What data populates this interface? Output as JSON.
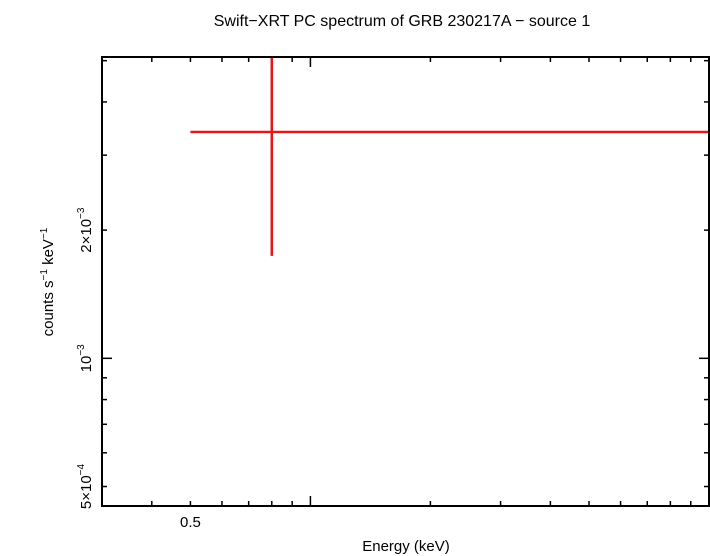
{
  "chart_data": {
    "type": "scatter",
    "title": "Swift−XRT PC spectrum of GRB 230217A − source 1",
    "xlabel": "Energy (keV)",
    "ylabel_parts": {
      "base": "counts s",
      "exp1": "−1",
      "mid": " keV",
      "exp2": "−1"
    },
    "xscale": "log",
    "yscale": "log",
    "xlim": [
      0.3,
      10
    ],
    "ylim": [
      0.00045,
      0.0051
    ],
    "x_ticks": [
      {
        "value": 0.5,
        "label": "0.5"
      }
    ],
    "y_ticks": [
      {
        "value": 0.0005,
        "mantissa": "5×10",
        "exp": "−4"
      },
      {
        "value": 0.001,
        "mantissa": "10",
        "exp": "−3"
      },
      {
        "value": 0.002,
        "mantissa": "2×10",
        "exp": "−3"
      }
    ],
    "series": [
      {
        "color": "#e8141c",
        "points": [
          {
            "x": 0.8,
            "xerr_low": 0.3,
            "xerr_high": 9.2,
            "y": 0.0034,
            "yerr_low": 0.00166,
            "yerr_high": 0.0051
          }
        ]
      }
    ],
    "grid": false,
    "legend": "none"
  }
}
